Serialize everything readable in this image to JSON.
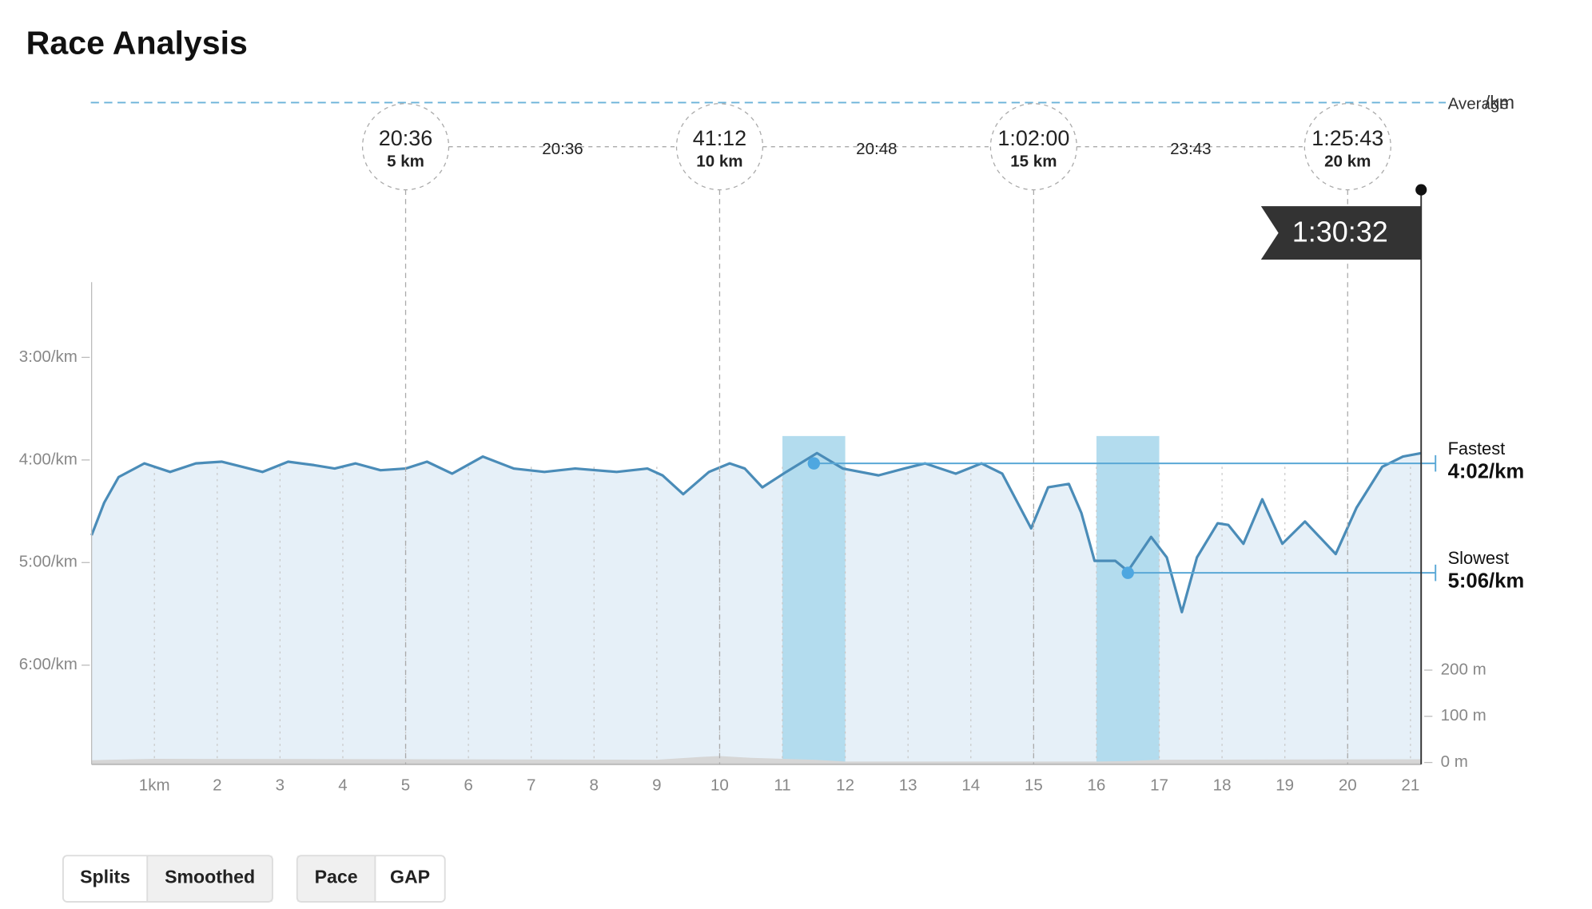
{
  "header": {
    "title": "Race Analysis"
  },
  "chart_data": {
    "type": "area",
    "xlim": [
      0,
      21.17
    ],
    "xticks": [
      {
        "value": 1,
        "label": "1km"
      },
      2,
      3,
      4,
      5,
      6,
      7,
      8,
      9,
      10,
      11,
      12,
      13,
      14,
      15,
      16,
      17,
      18,
      19,
      20,
      21
    ],
    "ylim": [
      136,
      418
    ],
    "y_inverted": true,
    "yticks": [
      {
        "value": 180,
        "label": "3:00/km"
      },
      {
        "value": 240,
        "label": "4:00/km"
      },
      {
        "value": 300,
        "label": "5:00/km"
      },
      {
        "value": 360,
        "label": "6:00/km"
      }
    ],
    "y2lim": [
      -4,
      1040
    ],
    "y2ticks": [
      {
        "value": 0,
        "label": "0 m"
      },
      {
        "value": 100,
        "label": "100 m"
      },
      {
        "value": 200,
        "label": "200 m"
      }
    ],
    "grid": true,
    "series": [
      {
        "color": "#4a8cb8",
        "x": [
          0,
          0.2,
          0.43,
          0.84,
          1.25,
          1.66,
          2.07,
          2.4,
          2.72,
          3.13,
          3.54,
          3.87,
          4.2,
          4.6,
          5.0,
          5.34,
          5.74,
          6.23,
          6.72,
          7.21,
          7.7,
          8.36,
          8.85,
          9.09,
          9.42,
          9.83,
          10.16,
          10.4,
          10.68,
          11.06,
          11.55,
          11.96,
          12.53,
          12.94,
          13.27,
          13.76,
          14.17,
          14.5,
          14.96,
          15.23,
          15.56,
          15.76,
          15.97,
          16.3,
          16.5,
          16.87,
          17.12,
          17.36,
          17.6,
          17.93,
          18.1,
          18.34,
          18.64,
          18.96,
          19.32,
          19.81,
          20.14,
          20.55,
          20.88,
          21.17
        ],
        "values": [
          284,
          265,
          250,
          242,
          247,
          242,
          241,
          244,
          247,
          241,
          243,
          245,
          242,
          246,
          245,
          241,
          248,
          238,
          245,
          247,
          245,
          247,
          245,
          249,
          260,
          247,
          242,
          245,
          256,
          247,
          236,
          245,
          249,
          245,
          242,
          248,
          242,
          248,
          280,
          256,
          254,
          271,
          299,
          299,
          305,
          285,
          297,
          329,
          297,
          277,
          278,
          289,
          263,
          289,
          276,
          295,
          268,
          244,
          238,
          236
        ]
      },
      {
        "color": "#d6d6d6",
        "axis": "y2",
        "x": [
          0,
          1,
          5,
          9,
          9.7,
          10,
          10.5,
          11.5,
          12,
          16,
          16.5,
          17,
          21.17
        ],
        "values": [
          5,
          8,
          7,
          6,
          12,
          14,
          10,
          6,
          2,
          2,
          3,
          6,
          7
        ]
      }
    ],
    "highlights": [
      {
        "label": "Fastest",
        "x": 11.5,
        "value": 242,
        "value_label": "4:02/km",
        "xrange": [
          11,
          12
        ]
      },
      {
        "label": "Slowest",
        "x": 16.5,
        "value": 306,
        "value_label": "5:06/km",
        "xrange": [
          16,
          17
        ]
      }
    ],
    "average": {
      "label": "Average",
      "unit": "/km"
    },
    "splits": [
      {
        "value": 5,
        "label": "5 km",
        "time": "20:36"
      },
      {
        "value": 10,
        "label": "10 km",
        "time": "41:12"
      },
      {
        "value": 15,
        "label": "15 km",
        "time": "1:02:00"
      },
      {
        "value": 20,
        "label": "20 km",
        "time": "1:25:43"
      }
    ],
    "split_intervals": [
      "20:36",
      "20:48",
      "23:43"
    ],
    "finish": {
      "x": 21.17,
      "time": "1:30:32"
    }
  },
  "controls": [
    {
      "options": [
        "Splits",
        "Smoothed"
      ],
      "active": 1
    },
    {
      "options": [
        "Pace",
        "GAP"
      ],
      "active": 0
    }
  ]
}
